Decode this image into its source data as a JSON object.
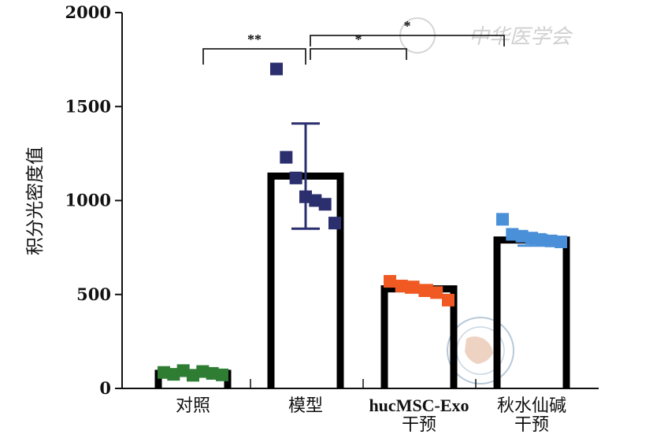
{
  "chart_data": {
    "type": "bar",
    "ylabel": "积分光密度值",
    "xlabel": "",
    "ylim": [
      0,
      2000
    ],
    "yticks": [
      0,
      500,
      1000,
      1500,
      2000
    ],
    "grid": false,
    "categories": [
      {
        "lines": [
          "对照"
        ],
        "value": 80,
        "error": 0,
        "color": "#2e7d32",
        "points": [
          85,
          75,
          95,
          70,
          90,
          80,
          72
        ]
      },
      {
        "lines": [
          "模型"
        ],
        "value": 1130,
        "error": 280,
        "color": "#2b2f6e",
        "points": [
          1700,
          1230,
          1120,
          1020,
          1000,
          980,
          880
        ]
      },
      {
        "lines": [
          "hucMSC-Exo",
          "干预"
        ],
        "value": 530,
        "error": 20,
        "color": "#f05a22",
        "points": [
          570,
          545,
          540,
          520,
          510,
          470
        ]
      },
      {
        "lines": [
          "秋水仙碱",
          "干预"
        ],
        "value": 790,
        "error": 30,
        "color": "#4a90d9",
        "points": [
          900,
          820,
          810,
          800,
          790,
          785,
          780
        ]
      }
    ],
    "significance": [
      {
        "from": 0,
        "to": 1,
        "label": "**"
      },
      {
        "from": 1,
        "to": 2,
        "label": "*"
      },
      {
        "from": 1,
        "to": 3,
        "label": "*"
      }
    ]
  },
  "watermark": {
    "text": "中华医学会"
  }
}
